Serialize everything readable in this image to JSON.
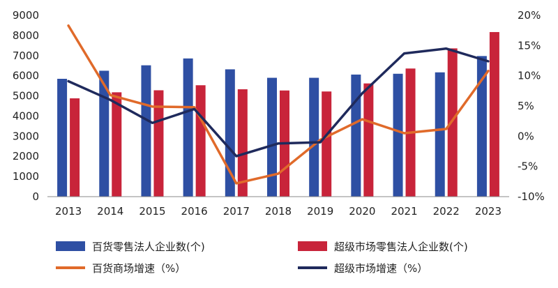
{
  "chart_data": {
    "type": "bar",
    "categories": [
      "2013",
      "2014",
      "2015",
      "2016",
      "2017",
      "2018",
      "2019",
      "2020",
      "2021",
      "2022",
      "2023"
    ],
    "series": [
      {
        "name": "百货零售法人企业数(个)",
        "kind": "bar",
        "axis": "left",
        "color": "#2e4fa3",
        "values": [
          5850,
          6250,
          6520,
          6860,
          6320,
          5900,
          5900,
          6060,
          6100,
          6170,
          6980
        ]
      },
      {
        "name": "超级市场零售法人企业数(个)",
        "kind": "bar",
        "axis": "left",
        "color": "#c8243a",
        "values": [
          4880,
          5180,
          5280,
          5530,
          5330,
          5270,
          5220,
          5620,
          6360,
          7360,
          8170
        ]
      },
      {
        "name": "百货商场增速（%）",
        "kind": "line",
        "axis": "right",
        "color": "#e06a2a",
        "values": [
          18.3,
          6.8,
          4.9,
          4.8,
          -7.8,
          -6.2,
          -0.6,
          2.8,
          0.5,
          1.2,
          10.8
        ]
      },
      {
        "name": "超级市场增速（%）",
        "kind": "line",
        "axis": "right",
        "color": "#1f2a5c",
        "values": [
          9.1,
          6.0,
          2.2,
          4.5,
          -3.3,
          -1.2,
          -1.0,
          7.1,
          13.7,
          14.5,
          12.4
        ]
      }
    ],
    "y_left": {
      "min": 0,
      "max": 9000,
      "step": 1000,
      "tick_labels": [
        "0",
        "1000",
        "2000",
        "3000",
        "4000",
        "5000",
        "6000",
        "7000",
        "8000",
        "9000"
      ]
    },
    "y_right": {
      "min": -10,
      "max": 20,
      "step": 5,
      "tick_labels": [
        "-10%",
        "-5%",
        "0%",
        "5%",
        "10%",
        "15%",
        "20%"
      ]
    },
    "grid": false,
    "legend_position": "bottom"
  }
}
